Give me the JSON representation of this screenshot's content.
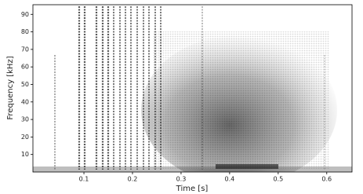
{
  "chart_data": {
    "type": "spectrogram",
    "x_label": "Time [s]",
    "y_label": "Frequency [kHz]",
    "xlim": [
      -0.005,
      0.652
    ],
    "ylim": [
      0,
      95.5
    ],
    "xticks": [
      0.1,
      0.2,
      0.3,
      0.4,
      0.5,
      0.6
    ],
    "yticks": [
      10,
      20,
      30,
      40,
      50,
      60,
      70,
      80,
      90
    ],
    "colormap": "gray_r"
  }
}
